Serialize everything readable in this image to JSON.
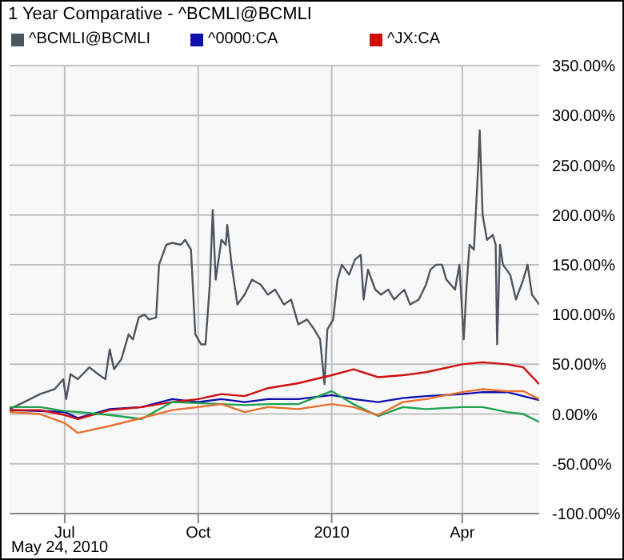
{
  "chart_data": {
    "type": "line",
    "title": "1 Year Comparative - ^BCMLI@BCMLI",
    "annotations": [
      "May 24, 2010"
    ],
    "x": [
      "2009-05-24",
      "2009-06-14",
      "2009-07-01",
      "2009-07-10",
      "2009-08-01",
      "2009-08-23",
      "2009-09-13",
      "2009-10-01",
      "2009-10-17",
      "2009-11-02",
      "2009-11-18",
      "2009-12-09",
      "2010-01-01",
      "2010-01-16",
      "2010-02-02",
      "2010-02-19",
      "2010-03-07",
      "2010-04-01",
      "2010-04-15",
      "2010-05-02",
      "2010-05-13",
      "2010-05-24"
    ],
    "series": [
      {
        "name": "^BCMLI@BCMLI",
        "color": "#4d5560",
        "x": [
          "2009-05-24",
          "2009-06-03",
          "2009-06-14",
          "2009-06-24",
          "2009-06-30",
          "2009-07-02",
          "2009-07-05",
          "2009-07-10",
          "2009-07-18",
          "2009-07-24",
          "2009-07-29",
          "2009-08-01",
          "2009-08-04",
          "2009-08-09",
          "2009-08-14",
          "2009-08-17",
          "2009-08-21",
          "2009-08-25",
          "2009-08-28",
          "2009-09-02",
          "2009-09-04",
          "2009-09-09",
          "2009-09-13",
          "2009-09-19",
          "2009-09-22",
          "2009-09-26",
          "2009-09-29",
          "2009-10-03",
          "2009-10-06",
          "2009-10-09",
          "2009-10-11",
          "2009-10-13",
          "2009-10-17",
          "2009-10-20",
          "2009-10-21",
          "2009-10-24",
          "2009-10-28",
          "2009-11-02",
          "2009-11-07",
          "2009-11-13",
          "2009-11-18",
          "2009-11-23",
          "2009-11-29",
          "2009-12-04",
          "2009-12-09",
          "2009-12-15",
          "2009-12-20",
          "2009-12-24",
          "2009-12-27",
          "2009-12-29",
          "2010-01-02",
          "2010-01-05",
          "2010-01-08",
          "2010-01-13",
          "2010-01-17",
          "2010-01-21",
          "2010-01-23",
          "2010-01-26",
          "2010-01-31",
          "2010-02-04",
          "2010-02-09",
          "2010-02-13",
          "2010-02-20",
          "2010-02-24",
          "2010-03-02",
          "2010-03-07",
          "2010-03-10",
          "2010-03-14",
          "2010-03-18",
          "2010-03-21",
          "2010-03-27",
          "2010-03-30",
          "2010-04-02",
          "2010-04-04",
          "2010-04-06",
          "2010-04-09",
          "2010-04-12",
          "2010-04-13",
          "2010-04-15",
          "2010-04-18",
          "2010-04-22",
          "2010-04-24",
          "2010-04-25",
          "2010-04-27",
          "2010-04-29",
          "2010-05-04",
          "2010-05-08",
          "2010-05-13",
          "2010-05-16",
          "2010-05-19",
          "2010-05-24"
        ],
        "values": [
          5,
          12,
          20,
          25,
          35,
          15,
          40,
          35,
          47,
          40,
          35,
          65,
          45,
          55,
          80,
          75,
          97,
          100,
          95,
          97,
          150,
          170,
          172,
          170,
          175,
          165,
          80,
          70,
          70,
          130,
          205,
          135,
          175,
          170,
          190,
          150,
          110,
          120,
          135,
          130,
          120,
          125,
          110,
          115,
          90,
          95,
          85,
          75,
          30,
          85,
          95,
          135,
          150,
          140,
          155,
          160,
          115,
          145,
          125,
          120,
          125,
          115,
          125,
          110,
          115,
          130,
          145,
          150,
          150,
          135,
          125,
          150,
          75,
          130,
          170,
          165,
          250,
          285,
          200,
          175,
          180,
          170,
          70,
          170,
          150,
          140,
          115,
          135,
          150,
          120,
          110
        ]
      },
      {
        "name": "^0000:CA",
        "color": "#1010b0",
        "values": [
          4,
          3,
          2,
          -4,
          5,
          7,
          15,
          12,
          15,
          12,
          15,
          15,
          19,
          15,
          12,
          16,
          18,
          20,
          22,
          22,
          18,
          14
        ]
      },
      {
        "name": "^JX:CA",
        "color": "#d01010",
        "values": [
          4,
          4,
          -1,
          -5,
          4,
          7,
          12,
          15,
          20,
          18,
          26,
          31,
          39,
          45,
          37,
          39,
          42,
          50,
          52,
          50,
          47,
          30
        ]
      },
      {
        "color": "#20a050",
        "values": [
          7,
          7,
          3,
          2,
          -1,
          -5,
          12,
          11,
          10,
          9,
          10,
          10,
          23,
          10,
          -2,
          7,
          5,
          7,
          7,
          2,
          0,
          -8
        ]
      },
      {
        "color": "#e87030",
        "values": [
          2,
          0,
          -9,
          -19,
          -12,
          -4,
          4,
          7,
          10,
          2,
          7,
          5,
          10,
          7,
          -1,
          12,
          15,
          22,
          25,
          23,
          23,
          15
        ]
      }
    ],
    "xlim": [
      "2009-05-24",
      "2010-05-24"
    ],
    "xticks": [
      {
        "value": "2009-07-01",
        "label": "Jul"
      },
      {
        "value": "2009-10-01",
        "label": "Oct"
      },
      {
        "value": "2010-01-01",
        "label": "2010"
      },
      {
        "value": "2010-04-01",
        "label": "Apr"
      }
    ],
    "ylim": [
      -100,
      350
    ],
    "yticks": [
      {
        "value": -100,
        "label": "-100.00%"
      },
      {
        "value": -50,
        "label": "-50.00%"
      },
      {
        "value": 0,
        "label": "0.00%"
      },
      {
        "value": 50,
        "label": "50.00%"
      },
      {
        "value": 100,
        "label": "100.00%"
      },
      {
        "value": 150,
        "label": "150.00%"
      },
      {
        "value": 200,
        "label": "200.00%"
      },
      {
        "value": 250,
        "label": "250.00%"
      },
      {
        "value": 300,
        "label": "300.00%"
      },
      {
        "value": 350,
        "label": "350.00%"
      }
    ],
    "grid": true,
    "legend": "top left"
  }
}
